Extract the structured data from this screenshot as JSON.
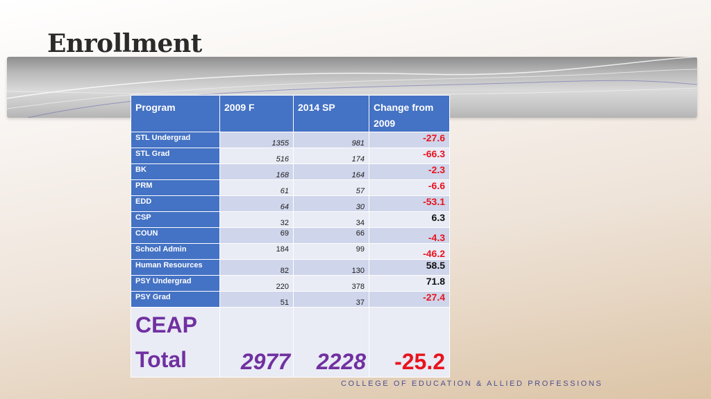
{
  "slide": {
    "title": "Enrollment",
    "footer": "COLLEGE OF EDUCATION & ALLIED PROFESSIONS"
  },
  "table": {
    "headers": {
      "program": "Program",
      "y2009": "2009 F",
      "y2014": "2014 SP",
      "change": "Change from 2009"
    },
    "rows": [
      {
        "program": "STL Undergrad",
        "y2009": "1355",
        "y2014": "981",
        "change": "-27.6"
      },
      {
        "program": "STL Grad",
        "y2009": "516",
        "y2014": "174",
        "change": "-66.3"
      },
      {
        "program": "BK",
        "y2009": "168",
        "y2014": "164",
        "change": "-2.3"
      },
      {
        "program": "PRM",
        "y2009": "61",
        "y2014": "57",
        "change": "-6.6"
      },
      {
        "program": "EDD",
        "y2009": "64",
        "y2014": "30",
        "change": "-53.1"
      },
      {
        "program": "CSP",
        "y2009": "32",
        "y2014": "34",
        "change": "6.3"
      },
      {
        "program": "COUN",
        "y2009": "69",
        "y2014": "66",
        "change": "-4.3"
      },
      {
        "program": "School Admin",
        "y2009": "184",
        "y2014": "99",
        "change": "-46.2"
      },
      {
        "program": "Human Resources",
        "y2009": "82",
        "y2014": "130",
        "change": "58.5"
      },
      {
        "program": "PSY Undergrad",
        "y2009": "220",
        "y2014": "378",
        "change": "71.8"
      },
      {
        "program": "PSY Grad",
        "y2009": "51",
        "y2014": "37",
        "change": "-27.4"
      }
    ],
    "total": {
      "label_line1": "CEAP",
      "label_line2": "Total",
      "y2009": "2977",
      "y2014": "2228",
      "change": "-25.2"
    }
  },
  "colors": {
    "header_blue": "#4472c4",
    "negative_red": "#e8141e",
    "total_purple": "#7030a0"
  }
}
